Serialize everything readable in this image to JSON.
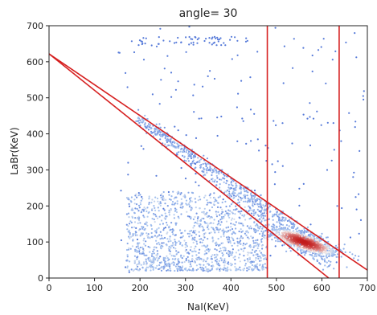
{
  "chart_data": {
    "type": "scatter",
    "title": "angle= 30",
    "xlabel": "NaI(KeV)",
    "ylabel": "LaBr(KeV)",
    "xlim": [
      0,
      700
    ],
    "ylim": [
      0,
      700
    ],
    "xticks": [
      0,
      100,
      200,
      300,
      400,
      500,
      600,
      700
    ],
    "yticks": [
      0,
      100,
      200,
      300,
      400,
      500,
      600,
      700
    ],
    "grid": false,
    "marker_color_low": "#4a6fd6",
    "marker_color_mid": "#a9c6f0",
    "marker_color_high": "#c21a1a",
    "cut_line_color": "#d62020",
    "density_peak": {
      "x": 560,
      "y": 100
    },
    "cut_lines": [
      {
        "name": "upper diagonal",
        "x": [
          0,
          700
        ],
        "y": [
          622,
          22
        ]
      },
      {
        "name": "lower diagonal",
        "x": [
          0,
          615
        ],
        "y": [
          622,
          0
        ]
      },
      {
        "name": "left window",
        "x": [
          480,
          480
        ],
        "y": [
          0,
          700
        ]
      },
      {
        "name": "right window",
        "x": [
          638,
          638
        ],
        "y": [
          0,
          700
        ]
      }
    ],
    "point_groups": [
      {
        "name": "dense low-energy band",
        "count": 1300,
        "x_range": [
          170,
          480
        ],
        "y_range": [
          20,
          240
        ]
      },
      {
        "name": "diagonal band",
        "count": 650,
        "x_range": [
          190,
          620
        ],
        "y_range": [
          40,
          470
        ]
      },
      {
        "name": "photopeak cluster",
        "count": 900,
        "center": [
          560,
          100
        ],
        "spread": [
          38,
          20
        ]
      },
      {
        "name": "sparse background",
        "count": 170,
        "x_range": [
          150,
          700
        ],
        "y_range": [
          0,
          700
        ]
      },
      {
        "name": "pile-up row",
        "count": 60,
        "x_range": [
          180,
          440
        ],
        "y_range": [
          645,
          670
        ]
      }
    ]
  }
}
